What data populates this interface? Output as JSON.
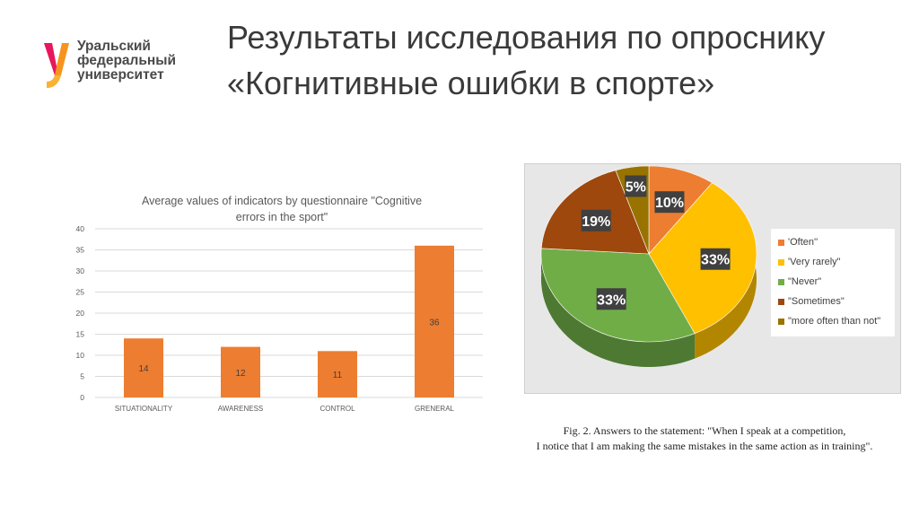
{
  "header": {
    "logo_lines": [
      "Уральский",
      "федеральный",
      "университет"
    ],
    "title": "Результаты исследования по опроснику «Когнитивные ошибки в спорте»"
  },
  "colors": {
    "bar": "#ed7d31",
    "gridline": "#d9d9d9",
    "axis_text": "#595959"
  },
  "chart_data": [
    {
      "type": "bar",
      "title": "Average values of indicators by questionnaire \"Cognitive errors in the sport\"",
      "title_lines": [
        "Average values of indicators by questionnaire \"Cognitive",
        "errors in the sport\""
      ],
      "categories": [
        "SITUATIONALITY",
        "AWARENESS",
        "CONTROL",
        "GRENERAL"
      ],
      "values": [
        14,
        12,
        11,
        36
      ],
      "ylim": [
        0,
        40
      ],
      "yticks": [
        0,
        5,
        10,
        15,
        20,
        25,
        30,
        35,
        40
      ],
      "grid": true,
      "xlabel": "",
      "ylabel": ""
    },
    {
      "type": "pie",
      "style": "3d",
      "slices": [
        {
          "label": "'Often''",
          "value": 10,
          "value_label": "10%",
          "color": "#ed7d31"
        },
        {
          "label": "'Very rarely\"",
          "value": 33,
          "value_label": "33%",
          "color": "#ffc000"
        },
        {
          "label": "\"Never\"",
          "value": 33,
          "value_label": "33%",
          "color": "#70ad47"
        },
        {
          "label": "\"Sometimes\"",
          "value": 19,
          "value_label": "19%",
          "color": "#9e480e"
        },
        {
          "label": "\"more often than not\"",
          "value": 5,
          "value_label": "5%",
          "color": "#997300"
        }
      ],
      "legend_position": "right"
    }
  ],
  "caption": {
    "line1": "Fig. 2. Answers to the statement: \"When I speak at a competition,",
    "line2": "I notice that I am making the same mistakes in the same action as in training\"."
  }
}
